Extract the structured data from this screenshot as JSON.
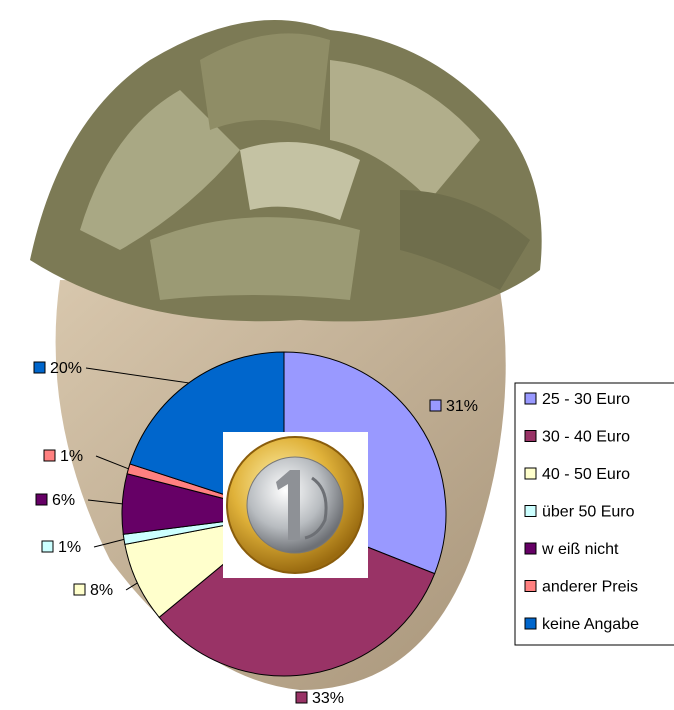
{
  "chart_data": {
    "type": "pie",
    "categories": [
      "25 - 30 Euro",
      "30 - 40 Euro",
      "40 - 50 Euro",
      "über 50 Euro",
      "w eiß nicht",
      "anderer Preis",
      "keine Angabe"
    ],
    "values": [
      31,
      33,
      8,
      1,
      6,
      1,
      20
    ],
    "value_labels": [
      "31%",
      "33%",
      "8%",
      "1%",
      "6%",
      "1%",
      "20%"
    ],
    "colors": [
      "#9999ff",
      "#993366",
      "#ffffcc",
      "#ccffff",
      "#660066",
      "#ff8080",
      "#0066cc"
    ],
    "legend": "right"
  }
}
